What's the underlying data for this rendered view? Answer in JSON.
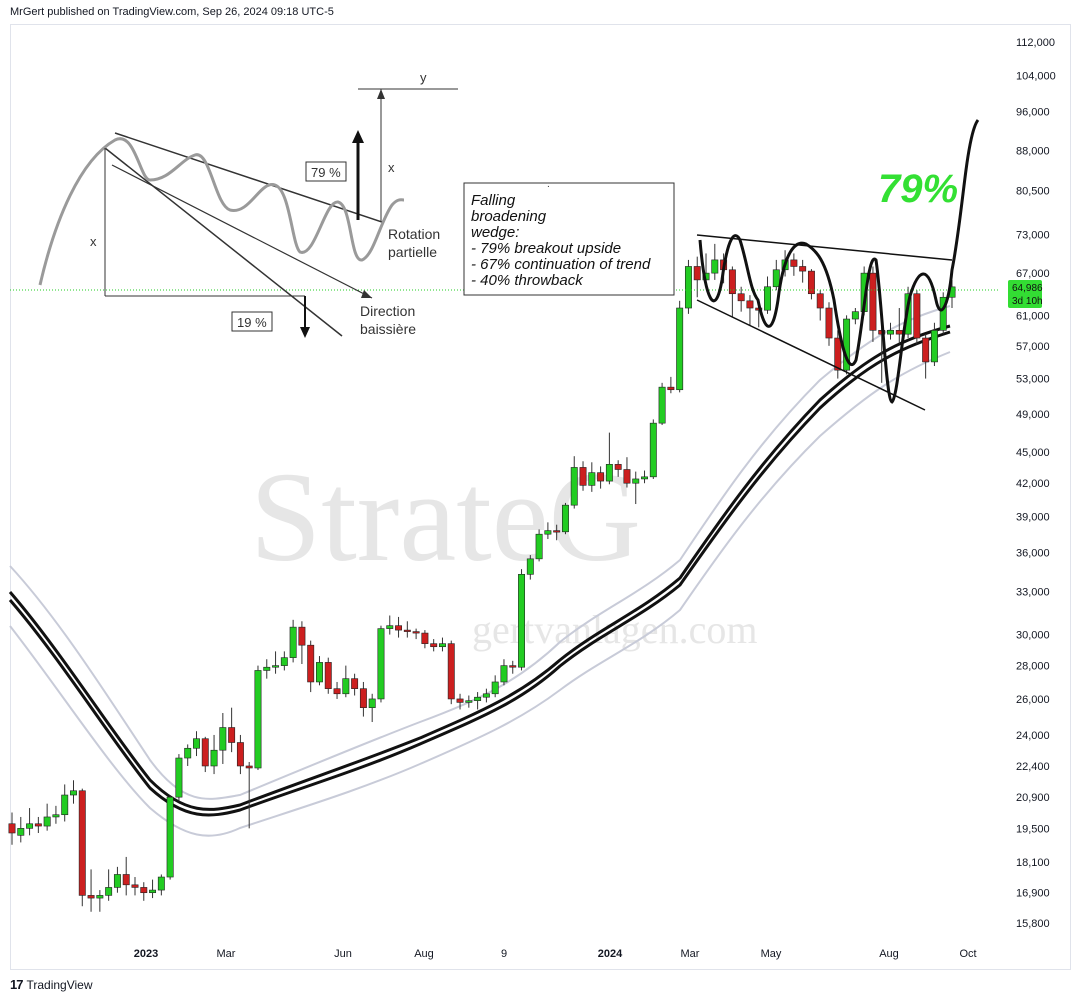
{
  "header": {
    "text": "MrGert published on TradingView.com, Sep 26, 2024 09:18 UTC-5"
  },
  "footer": {
    "logo": "17",
    "label": "TradingView"
  },
  "colors": {
    "up": "#22cc22",
    "down": "#cc1f1f",
    "wick": "#333333",
    "ma": "#111111",
    "band": "#c8cbd8",
    "accent_green": "#33e033",
    "price_label_bg": "#33dd33",
    "watermark": "#e2e2e2"
  },
  "watermark": {
    "main": "StrateG",
    "url": "gertvanlagen.com"
  },
  "annotation_box": {
    "lines": [
      "Falling",
      "broadening",
      "wedge:",
      "- 79% breakout upside",
      "- 67% continuation of trend",
      "- 40% throwback"
    ],
    "dot": "."
  },
  "big_percent": "79%",
  "diagram": {
    "y_label": "y",
    "x_left": "x",
    "x_right": "x",
    "pct_up": "79 %",
    "pct_down": "19 %",
    "rotation": [
      "Rotation",
      "partielle"
    ],
    "direction": [
      "Direction",
      "baissière"
    ]
  },
  "price_label": {
    "price": "64,986",
    "countdown": "3d 10h"
  },
  "chart_data": {
    "type": "candlestick",
    "y_scale": "log",
    "y_ticks": [
      "112,000",
      "104,000",
      "96,000",
      "88,000",
      "80,500",
      "73,000",
      "67,000",
      "61,000",
      "57,000",
      "53,000",
      "49,000",
      "45,000",
      "42,000",
      "39,000",
      "36,000",
      "33,000",
      "30,000",
      "28,000",
      "26,000",
      "24,000",
      "22,400",
      "20,900",
      "19,500",
      "18,100",
      "16,900",
      "15,800"
    ],
    "x_ticks": [
      "2023",
      "Mar",
      "Jun",
      "Aug",
      "9",
      "2024",
      "Mar",
      "May",
      "Aug",
      "Oct"
    ],
    "last_price": 64986,
    "candles": [
      [
        19700,
        19300,
        20200,
        18800
      ],
      [
        19200,
        19500,
        20000,
        18900
      ],
      [
        19500,
        19700,
        20400,
        19200
      ],
      [
        19700,
        19600,
        20000,
        19300
      ],
      [
        19600,
        20000,
        20600,
        19400
      ],
      [
        20000,
        20100,
        20500,
        19700
      ],
      [
        20100,
        21000,
        21500,
        19800
      ],
      [
        21000,
        21200,
        21700,
        20600
      ],
      [
        21200,
        16800,
        21300,
        16400
      ],
      [
        16800,
        16700,
        17800,
        16200
      ],
      [
        16700,
        16800,
        17000,
        16200
      ],
      [
        16800,
        17100,
        17800,
        16600
      ],
      [
        17100,
        17600,
        17900,
        16900
      ],
      [
        17600,
        17200,
        18300,
        16800
      ],
      [
        17200,
        17100,
        17500,
        16800
      ],
      [
        17100,
        16900,
        17300,
        16600
      ],
      [
        16900,
        17000,
        17400,
        16700
      ],
      [
        17000,
        17500,
        17600,
        16800
      ],
      [
        17500,
        20900,
        21000,
        17400
      ],
      [
        20900,
        22800,
        23000,
        20700
      ],
      [
        22800,
        23300,
        23500,
        22400
      ],
      [
        23300,
        23800,
        24200,
        22900
      ],
      [
        23800,
        22400,
        23900,
        22100
      ],
      [
        22400,
        23200,
        24000,
        22000
      ],
      [
        23200,
        24400,
        25200,
        22500
      ],
      [
        24400,
        23600,
        25500,
        23100
      ],
      [
        23600,
        22400,
        24000,
        22000
      ],
      [
        22400,
        22300,
        22600,
        19500
      ],
      [
        22300,
        27700,
        28000,
        22200
      ],
      [
        27700,
        27900,
        28400,
        27200
      ],
      [
        27900,
        28000,
        28900,
        27500
      ],
      [
        28000,
        28500,
        28900,
        27700
      ],
      [
        28500,
        30500,
        31000,
        28200
      ],
      [
        30500,
        29300,
        30900,
        28100
      ],
      [
        29300,
        27000,
        29600,
        26400
      ],
      [
        27000,
        28200,
        28600,
        26800
      ],
      [
        28200,
        26600,
        28500,
        26300
      ],
      [
        26600,
        26300,
        27000,
        26000
      ],
      [
        26300,
        27200,
        28000,
        26100
      ],
      [
        27200,
        26600,
        27500,
        26200
      ],
      [
        26600,
        25500,
        27000,
        25000
      ],
      [
        25500,
        26000,
        26300,
        24700
      ],
      [
        26000,
        30400,
        30600,
        25800
      ],
      [
        30400,
        30600,
        31300,
        30000
      ],
      [
        30600,
        30300,
        31200,
        29800
      ],
      [
        30300,
        30200,
        30900,
        29800
      ],
      [
        30200,
        30100,
        30400,
        29700
      ],
      [
        30100,
        29400,
        30300,
        29100
      ],
      [
        29400,
        29200,
        29700,
        28900
      ],
      [
        29200,
        29400,
        29800,
        28900
      ],
      [
        29400,
        26000,
        29600,
        25700
      ],
      [
        26000,
        25800,
        26300,
        25400
      ],
      [
        25800,
        25900,
        26200,
        25500
      ],
      [
        25900,
        26100,
        26400,
        25400
      ],
      [
        26100,
        26300,
        26600,
        25800
      ],
      [
        26300,
        27000,
        27400,
        26100
      ],
      [
        27000,
        28000,
        28400,
        26800
      ],
      [
        28000,
        27900,
        28300,
        27500
      ],
      [
        27900,
        34300,
        34700,
        27700
      ],
      [
        34300,
        35500,
        35800,
        33900
      ],
      [
        35500,
        37500,
        37900,
        35300
      ],
      [
        37500,
        37800,
        38500,
        37100
      ],
      [
        37800,
        37700,
        38300,
        37000
      ],
      [
        37700,
        40000,
        40200,
        37500
      ],
      [
        40000,
        43500,
        44600,
        39700
      ],
      [
        43500,
        41800,
        44100,
        41300
      ],
      [
        41800,
        43000,
        44000,
        41200
      ],
      [
        43000,
        42200,
        43600,
        41500
      ],
      [
        42200,
        43800,
        47000,
        41900
      ],
      [
        43800,
        43300,
        44200,
        42600
      ],
      [
        43300,
        42000,
        44500,
        41600
      ],
      [
        42000,
        42400,
        43100,
        40100
      ],
      [
        42400,
        42600,
        43200,
        42000
      ],
      [
        42600,
        48000,
        48400,
        42400
      ],
      [
        48000,
        52000,
        52500,
        47800
      ],
      [
        52000,
        51700,
        53200,
        51300
      ],
      [
        51700,
        62000,
        63000,
        51400
      ],
      [
        62000,
        68000,
        69000,
        61200
      ],
      [
        68000,
        66000,
        69500,
        63500
      ],
      [
        66000,
        67000,
        70000,
        64800
      ],
      [
        67000,
        69000,
        71500,
        66000
      ],
      [
        69000,
        67500,
        70000,
        65500
      ],
      [
        67500,
        64000,
        68000,
        60800
      ],
      [
        64000,
        63000,
        65000,
        61500
      ],
      [
        63000,
        62000,
        63800,
        59700
      ],
      [
        62000,
        61700,
        62500,
        59400
      ],
      [
        61700,
        65000,
        66500,
        61200
      ],
      [
        65000,
        67500,
        69000,
        64500
      ],
      [
        67500,
        69000,
        70500,
        66500
      ],
      [
        69000,
        68000,
        70000,
        66600
      ],
      [
        68000,
        67300,
        69000,
        65600
      ],
      [
        67300,
        64000,
        67600,
        63200
      ],
      [
        64000,
        62000,
        64500,
        60300
      ],
      [
        62000,
        58000,
        62800,
        57000
      ],
      [
        58000,
        54000,
        59000,
        53000
      ],
      [
        54000,
        60500,
        61000,
        53500
      ],
      [
        60500,
        61500,
        62000,
        59800
      ],
      [
        61500,
        67000,
        68000,
        61000
      ],
      [
        67000,
        59000,
        68000,
        57500
      ],
      [
        59000,
        58500,
        60500,
        52500
      ],
      [
        58500,
        59000,
        60000,
        57800
      ],
      [
        59000,
        58500,
        62000,
        57300
      ],
      [
        58500,
        64000,
        65000,
        58000
      ],
      [
        64000,
        58000,
        64500,
        57200
      ],
      [
        58000,
        55000,
        58500,
        53000
      ],
      [
        55000,
        59000,
        60000,
        54500
      ],
      [
        59000,
        63500,
        64200,
        58500
      ],
      [
        63500,
        64986,
        66000,
        62000
      ]
    ]
  }
}
